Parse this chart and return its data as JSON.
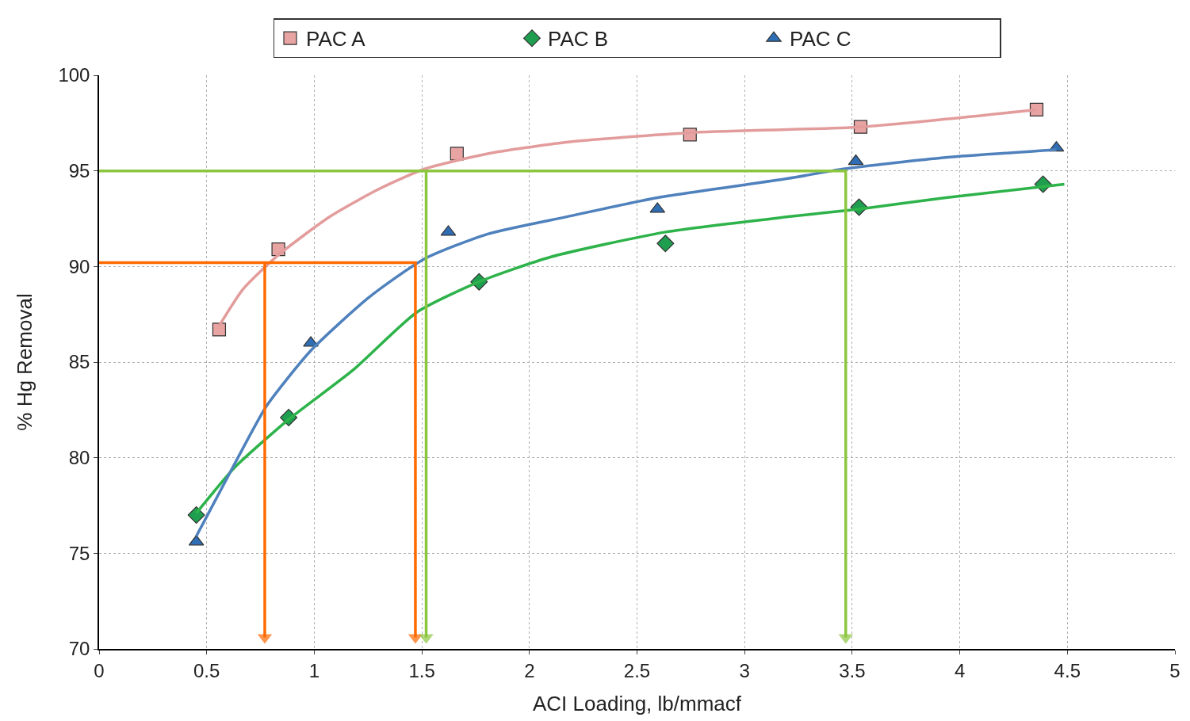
{
  "chart_data": {
    "type": "scatter",
    "xlabel": "ACI Loading, lb/mmacf",
    "ylabel": "% Hg Removal",
    "xlim": [
      0,
      5
    ],
    "xticks": [
      0,
      0.5,
      1,
      1.5,
      2,
      2.5,
      3,
      3.5,
      4,
      4.5,
      5
    ],
    "ylim": [
      70,
      100
    ],
    "yticks": [
      70,
      75,
      80,
      85,
      90,
      95,
      100
    ],
    "grid": true,
    "legend": "top",
    "series": [
      {
        "name": "PAC A",
        "marker": "square",
        "color": "#e8a3a3",
        "x": [
          0.558,
          0.833,
          1.663,
          2.746,
          3.539,
          4.357
        ],
        "values": [
          86.7,
          90.9,
          95.9,
          96.9,
          97.3,
          98.2
        ]
      },
      {
        "name": "PAC B",
        "marker": "diamond",
        "color": "#1f9e4f",
        "x": [
          0.452,
          0.881,
          1.766,
          2.632,
          3.532,
          4.387
        ],
        "values": [
          77.0,
          82.1,
          89.2,
          91.2,
          93.1,
          94.3
        ]
      },
      {
        "name": "PAC C",
        "marker": "triangle",
        "color": "#2f6db5",
        "x": [
          0.452,
          0.984,
          1.623,
          2.595,
          3.517,
          4.449
        ],
        "values": [
          75.6,
          86.0,
          91.8,
          93.0,
          95.5,
          96.2
        ]
      },
      {
        "type": "line",
        "marker": "none",
        "color": "#e39c9c",
        "x": [
          0.558,
          0.668,
          0.833,
          1.072,
          1.292,
          1.512,
          1.806,
          2.173,
          2.746,
          3.539,
          4.357
        ],
        "values": [
          86.9,
          88.8,
          90.6,
          92.6,
          94.0,
          95.1,
          95.9,
          96.5,
          97.0,
          97.3,
          98.2
        ]
      },
      {
        "type": "line",
        "marker": "none",
        "color": "#2db34a",
        "x": [
          0.452,
          0.631,
          0.881,
          1.182,
          1.476,
          1.766,
          2.1,
          2.632,
          3.201,
          3.532,
          3.935,
          4.486
        ],
        "values": [
          77.1,
          79.5,
          82.0,
          84.6,
          87.6,
          89.2,
          90.5,
          91.8,
          92.6,
          93.0,
          93.6,
          94.3
        ]
      },
      {
        "type": "line",
        "marker": "none",
        "color": "#4f81bd",
        "x": [
          0.452,
          0.631,
          0.778,
          0.984,
          1.256,
          1.512,
          1.806,
          2.173,
          2.595,
          3.201,
          3.458,
          3.935,
          4.449
        ],
        "values": [
          75.9,
          79.7,
          82.7,
          85.6,
          88.4,
          90.4,
          91.7,
          92.6,
          93.6,
          94.6,
          95.1,
          95.7,
          96.1
        ]
      },
      {
        "type": "line",
        "marker": "none",
        "color": "#ff6a00",
        "x": [
          0,
          1.47,
          1.47,
          null,
          0.77,
          0.77
        ],
        "values": [
          90.2,
          90.2,
          70.6,
          null,
          90.2,
          70.6
        ]
      },
      {
        "type": "line",
        "marker": "none",
        "color": "#8cc63f",
        "x": [
          0,
          3.47,
          3.47,
          null,
          1.52,
          1.52
        ],
        "values": [
          95,
          95,
          70.6,
          null,
          95,
          70.6
        ]
      }
    ]
  }
}
